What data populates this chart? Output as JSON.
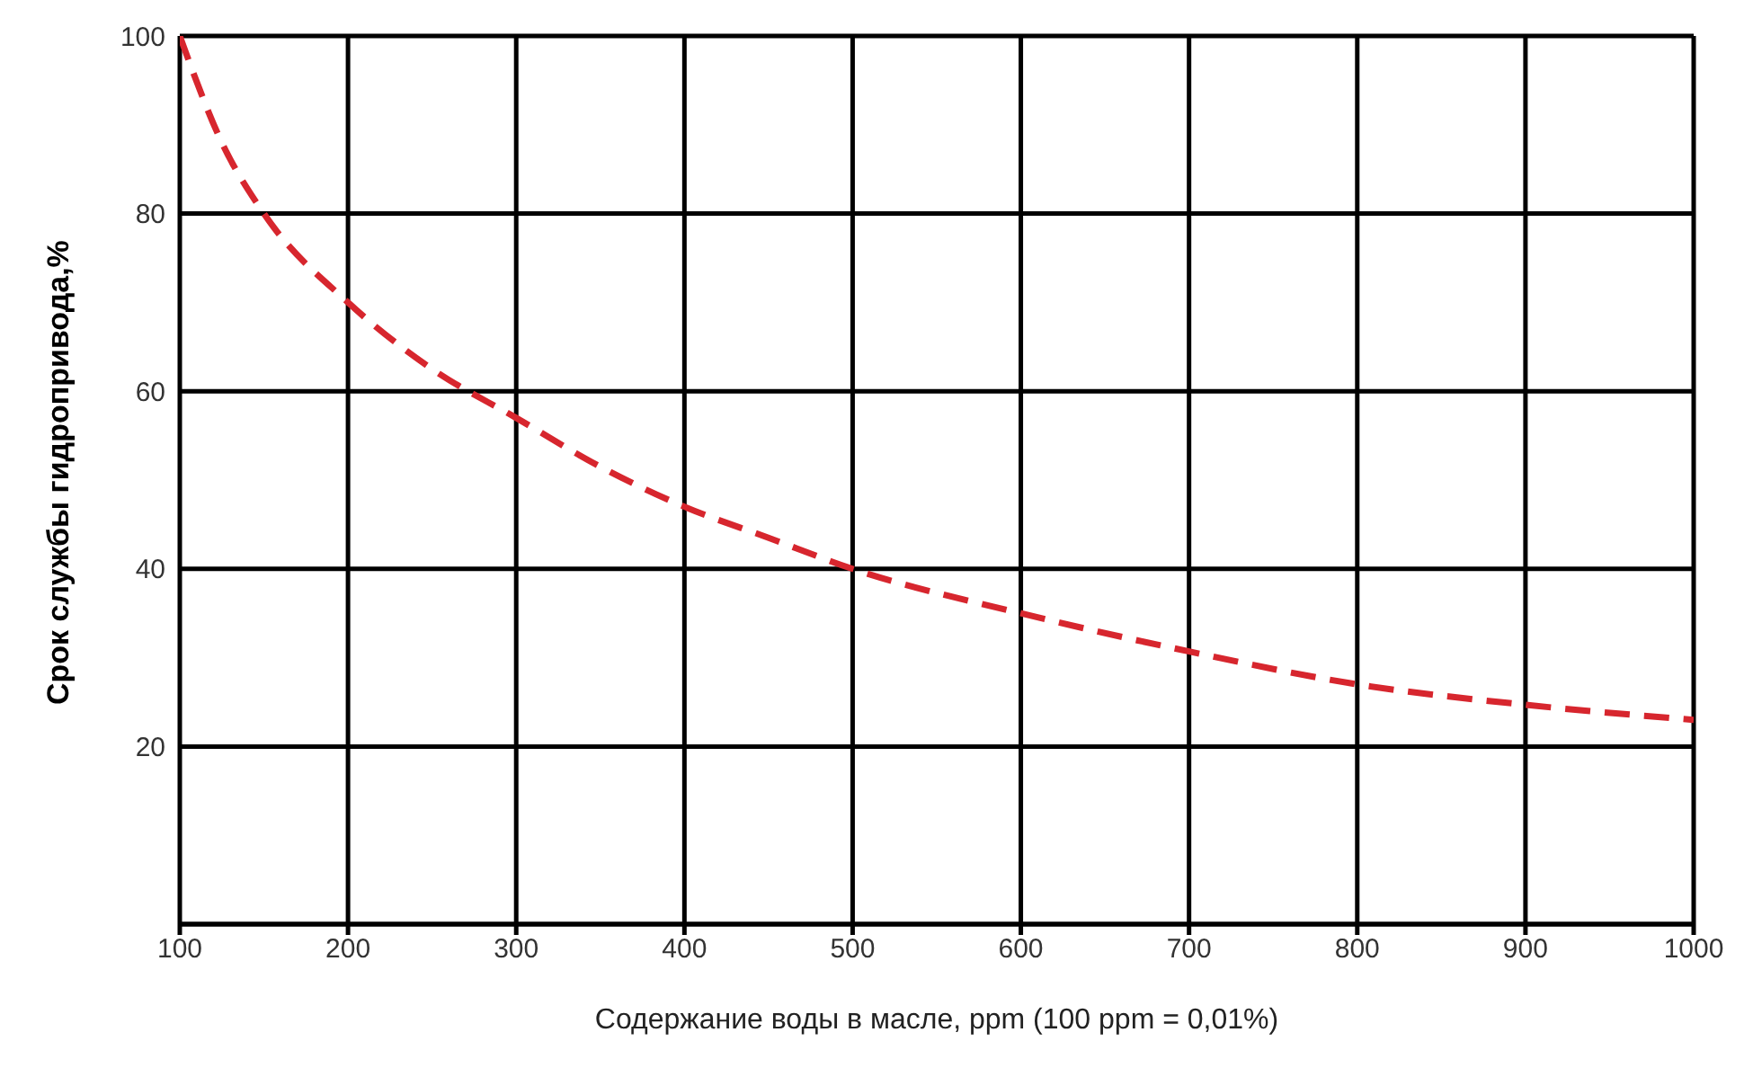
{
  "chart_data": {
    "type": "line",
    "xlabel": "Содержание воды в масле, ppm (100 ppm = 0,01%)",
    "ylabel": "Срок службы гидропривода,%",
    "x": [
      100,
      125,
      150,
      200,
      250,
      300,
      350,
      400,
      450,
      500,
      600,
      700,
      800,
      900,
      1000
    ],
    "series": [
      {
        "color": "#d7262e",
        "values": [
          100,
          88,
          80,
          70,
          62.5,
          57,
          51.5,
          47,
          43.5,
          40,
          35,
          30.7,
          27,
          24.7,
          23
        ]
      }
    ],
    "xlim": [
      100,
      1000
    ],
    "xticks": [
      100,
      200,
      300,
      400,
      500,
      600,
      700,
      800,
      900,
      1000
    ],
    "ylim": [
      0,
      100
    ],
    "yticks": [
      20,
      40,
      60,
      80,
      100
    ],
    "grid": true,
    "line_style": "dashed",
    "marker": "none"
  }
}
